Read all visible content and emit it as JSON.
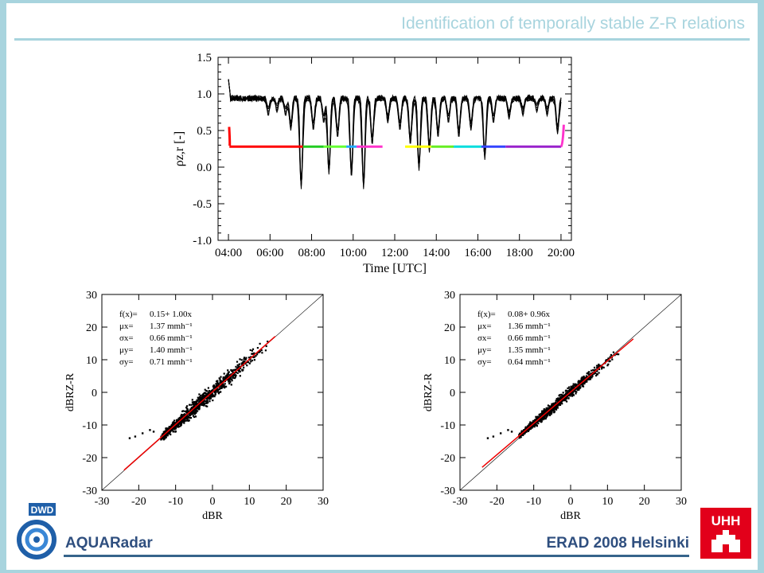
{
  "header": {
    "title": "Identification of temporally stable Z-R relations"
  },
  "footer": {
    "left": "AQUARadar",
    "right": "ERAD 2008 Helsinki"
  },
  "logos": {
    "dwd_text": "DWD",
    "uhh_text": "UHH"
  },
  "chart_data": [
    {
      "type": "line",
      "xlabel": "Time [UTC]",
      "ylabel": "ρz,r [-]",
      "ylim": [
        -1.0,
        1.5
      ],
      "xlim": [
        "03:30",
        "20:30"
      ],
      "x_ticks": [
        "04:00",
        "06:00",
        "08:00",
        "10:00",
        "12:00",
        "14:00",
        "16:00",
        "18:00",
        "20:00"
      ],
      "y_ticks": [
        "1.5",
        "1.0",
        "0.5",
        "0.0",
        "-0.5",
        "-1.0"
      ],
      "series": [
        {
          "segments": [
            {
              "start": "04:03",
              "end": "07:35",
              "color": "#ff0000",
              "value": 0.28
            },
            {
              "start": "07:35",
              "end": "08:35",
              "color": "#22cc22",
              "value": 0.28
            },
            {
              "start": "08:35",
              "end": "09:40",
              "color": "#66ff33",
              "value": 0.28
            },
            {
              "start": "09:40",
              "end": "10:10",
              "color": "#22aaff",
              "value": 0.28
            },
            {
              "start": "10:10",
              "end": "11:25",
              "color": "#ff33cc",
              "value": 0.28
            },
            {
              "start": "11:25",
              "end": "12:30",
              "color": "#ffffff",
              "value": 0.28
            },
            {
              "start": "12:30",
              "end": "13:45",
              "color": "#ffff00",
              "value": 0.28
            },
            {
              "start": "13:45",
              "end": "14:50",
              "color": "#66ee22",
              "value": 0.28
            },
            {
              "start": "14:50",
              "end": "16:10",
              "color": "#00dddd",
              "value": 0.28
            },
            {
              "start": "16:10",
              "end": "17:20",
              "color": "#3344ff",
              "value": 0.28
            },
            {
              "start": "17:20",
              "end": "20:00",
              "color": "#9922cc",
              "value": 0.28
            }
          ]
        }
      ],
      "dips": [
        {
          "time": "05:55",
          "depth": 0.7
        },
        {
          "time": "06:20",
          "depth": 0.75
        },
        {
          "time": "06:45",
          "depth": 0.7
        },
        {
          "time": "07:00",
          "depth": 0.5
        },
        {
          "time": "07:30",
          "depth": -0.3
        },
        {
          "time": "08:05",
          "depth": 0.5
        },
        {
          "time": "08:35",
          "depth": 0.6
        },
        {
          "time": "08:50",
          "depth": -0.1
        },
        {
          "time": "09:15",
          "depth": 0.4
        },
        {
          "time": "09:55",
          "depth": -0.15
        },
        {
          "time": "10:30",
          "depth": -0.3
        },
        {
          "time": "10:55",
          "depth": 0.3
        },
        {
          "time": "11:40",
          "depth": 0.6
        },
        {
          "time": "12:15",
          "depth": 0.5
        },
        {
          "time": "12:45",
          "depth": 0.3
        },
        {
          "time": "13:10",
          "depth": -0.05
        },
        {
          "time": "13:40",
          "depth": 0.2
        },
        {
          "time": "14:05",
          "depth": 0.4
        },
        {
          "time": "14:35",
          "depth": 0.6
        },
        {
          "time": "15:05",
          "depth": 0.4
        },
        {
          "time": "15:40",
          "depth": 0.5
        },
        {
          "time": "16:20",
          "depth": 0.1
        },
        {
          "time": "16:45",
          "depth": 0.6
        },
        {
          "time": "17:30",
          "depth": 0.65
        },
        {
          "time": "18:10",
          "depth": 0.7
        },
        {
          "time": "18:50",
          "depth": 0.75
        },
        {
          "time": "19:20",
          "depth": 0.7
        },
        {
          "time": "19:50",
          "depth": 0.45
        }
      ]
    },
    {
      "type": "scatter",
      "xlabel": "dBR",
      "ylabel": "dBRZ-R",
      "xlim": [
        -30,
        30
      ],
      "ylim": [
        -30,
        30
      ],
      "ticks": [
        "-30",
        "-20",
        "-10",
        "0",
        "10",
        "20",
        "30"
      ],
      "fit": {
        "a": 0.15,
        "b": 1.0
      },
      "annotations": [
        {
          "label": "f(x)=",
          "value": "0.15+ 1.00x"
        },
        {
          "label": "μx=",
          "value": "1.37 mmh⁻¹"
        },
        {
          "label": "σx=",
          "value": "0.66 mmh⁻¹"
        },
        {
          "label": "μy=",
          "value": "1.40 mmh⁻¹"
        },
        {
          "label": "σy=",
          "value": "0.71 mmh⁻¹"
        }
      ],
      "cloud": {
        "x_range": [
          -14,
          16
        ],
        "spread": 2.2,
        "slope": 1.0,
        "offset": 0.15
      }
    },
    {
      "type": "scatter",
      "xlabel": "dBR",
      "ylabel": "dBRZ-R",
      "xlim": [
        -30,
        30
      ],
      "ylim": [
        -30,
        30
      ],
      "ticks": [
        "-30",
        "-20",
        "-10",
        "0",
        "10",
        "20",
        "30"
      ],
      "fit": {
        "a": 0.08,
        "b": 0.96
      },
      "annotations": [
        {
          "label": "f(x)=",
          "value": "0.08+ 0.96x"
        },
        {
          "label": "μx=",
          "value": "1.36 mmh⁻¹"
        },
        {
          "label": "σx=",
          "value": "0.66 mmh⁻¹"
        },
        {
          "label": "μy=",
          "value": "1.35 mmh⁻¹"
        },
        {
          "label": "σy=",
          "value": "0.64 mmh⁻¹"
        }
      ],
      "cloud": {
        "x_range": [
          -14,
          15
        ],
        "spread": 1.6,
        "slope": 0.96,
        "offset": 0.08
      }
    }
  ]
}
